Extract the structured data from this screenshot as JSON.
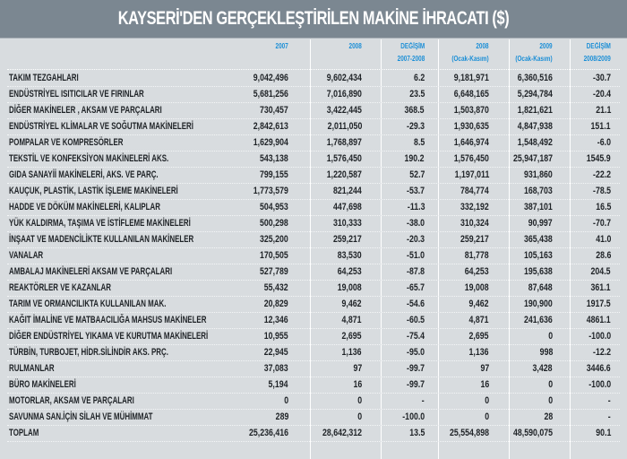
{
  "title": "KAYSERİ'DEN GERÇEKLEŞTİRİLEN MAKİNE İHRACATI ($)",
  "headers": [
    [
      "2007",
      ""
    ],
    [
      "2008",
      ""
    ],
    [
      "DEĞİŞİM",
      "2007-2008"
    ],
    [
      "2008",
      "(Ocak-Kasım)"
    ],
    [
      "2009",
      "(Ocak-Kasım)"
    ],
    [
      "DEĞİŞİM",
      "2008/2009"
    ]
  ],
  "accent_color": "#1a8ed6",
  "rows": [
    [
      "TAKIM TEZGAHLARI",
      "9,042,496",
      "9,602,434",
      "6.2",
      "9,181,971",
      "6,360,516",
      "-30.7"
    ],
    [
      "ENDÜSTRİYEL ISITICILAR VE FIRINLAR",
      "5,681,256",
      "7,016,890",
      "23.5",
      "6,648,165",
      "5,294,784",
      "-20.4"
    ],
    [
      "DİĞER MAKİNELER , AKSAM VE PARÇALARI",
      "730,457",
      "3,422,445",
      "368.5",
      "1,503,870",
      "1,821,621",
      "21.1"
    ],
    [
      "ENDÜSTRİYEL KLİMALAR VE SOĞUTMA MAKİNELERİ",
      "2,842,613",
      "2,011,050",
      "-29.3",
      "1,930,635",
      "4,847,938",
      "151.1"
    ],
    [
      "POMPALAR VE KOMPRESÖRLER",
      "1,629,904",
      "1,768,897",
      "8.5",
      "1,646,974",
      "1,548,492",
      "-6.0"
    ],
    [
      "TEKSTİL VE KONFEKSİYON MAKİNELERİ AKS.",
      "543,138",
      "1,576,450",
      "190.2",
      "1,576,450",
      "25,947,187",
      "1545.9"
    ],
    [
      "GIDA SANAYİİ MAKİNELERİ, AKS. VE PARÇ.",
      "799,155",
      "1,220,587",
      "52.7",
      "1,197,011",
      "931,860",
      "-22.2"
    ],
    [
      "KAUÇUK, PLASTİK, LASTİK İŞLEME MAKİNELERİ",
      "1,773,579",
      "821,244",
      "-53.7",
      "784,774",
      "168,703",
      "-78.5"
    ],
    [
      "HADDE VE DÖKÜM MAKİNELERİ, KALIPLAR",
      "504,953",
      "447,698",
      "-11.3",
      "332,192",
      "387,101",
      "16.5"
    ],
    [
      "YÜK KALDIRMA, TAŞIMA VE İSTİFLEME MAKİNELERİ",
      "500,298",
      "310,333",
      "-38.0",
      "310,324",
      "90,997",
      "-70.7"
    ],
    [
      "İNŞAAT VE MADENCİLİKTE KULLANILAN MAKİNELER",
      "325,200",
      "259,217",
      "-20.3",
      "259,217",
      "365,438",
      "41.0"
    ],
    [
      "VANALAR",
      "170,505",
      "83,530",
      "-51.0",
      "81,778",
      "105,163",
      "28.6"
    ],
    [
      "AMBALAJ MAKİNELERİ AKSAM VE PARÇALARI",
      "527,789",
      "64,253",
      "-87.8",
      "64,253",
      "195,638",
      "204.5"
    ],
    [
      "REAKTÖRLER VE KAZANLAR",
      "55,432",
      "19,008",
      "-65.7",
      "19,008",
      "87,648",
      "361.1"
    ],
    [
      "TARIM VE ORMANCILIKTA KULLANILAN MAK.",
      "20,829",
      "9,462",
      "-54.6",
      "9,462",
      "190,900",
      "1917.5"
    ],
    [
      "KAĞIT İMALİNE VE MATBAACILIĞA MAHSUS MAKİNELER",
      "12,346",
      "4,871",
      "-60.5",
      "4,871",
      "241,636",
      "4861.1"
    ],
    [
      "DİĞER ENDÜSTRİYEL YIKAMA VE KURUTMA MAKİNELERİ",
      "10,955",
      "2,695",
      "-75.4",
      "2,695",
      "0",
      "-100.0"
    ],
    [
      "TÜRBİN, TURBOJET, HİDR.SİLİNDİR AKS. PRÇ.",
      "22,945",
      "1,136",
      "-95.0",
      "1,136",
      "998",
      "-12.2"
    ],
    [
      "RULMANLAR",
      "37,083",
      "97",
      "-99.7",
      "97",
      "3,428",
      "3446.6"
    ],
    [
      "BÜRO MAKİNELERİ",
      "5,194",
      "16",
      "-99.7",
      "16",
      "0",
      "-100.0"
    ],
    [
      "MOTORLAR, AKSAM VE PARÇALARI",
      "0",
      "0",
      "-",
      "0",
      "0",
      "-"
    ],
    [
      "SAVUNMA SAN.İÇİN SİLAH VE MÜHİMMAT",
      "289",
      "0",
      "-100.0",
      "0",
      "28",
      "-"
    ],
    [
      "TOPLAM",
      "25,236,416",
      "28,642,312",
      "13.5",
      "25,554,898",
      "48,590,075",
      "90.1"
    ]
  ]
}
